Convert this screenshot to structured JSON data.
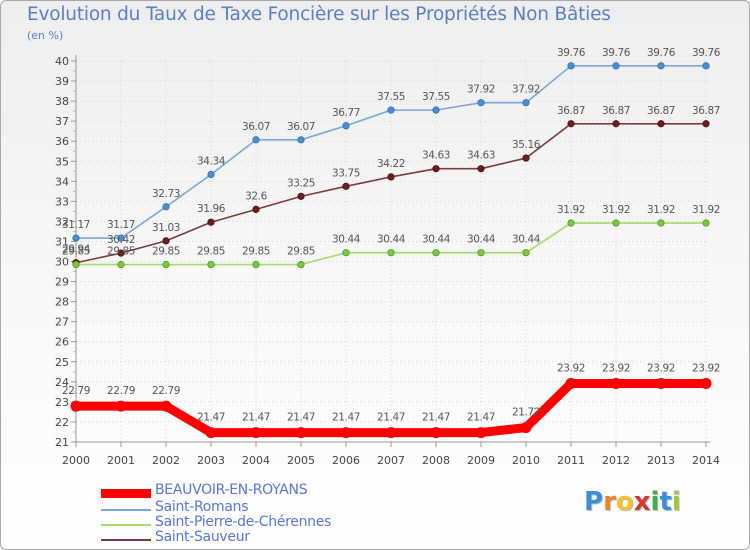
{
  "chart_data": {
    "type": "line",
    "title": "Evolution du Taux de Taxe Foncière sur les Propriétés Non Bâties",
    "ylabel": "(en %)",
    "xlabel": "",
    "x": [
      "2000",
      "2001",
      "2002",
      "2003",
      "2004",
      "2005",
      "2006",
      "2007",
      "2008",
      "2009",
      "2010",
      "2011",
      "2012",
      "2013",
      "2014"
    ],
    "ylim": [
      21,
      40
    ],
    "yticks": [
      21,
      22,
      23,
      24,
      25,
      26,
      27,
      28,
      29,
      30,
      31,
      32,
      33,
      34,
      35,
      36,
      37,
      38,
      39,
      40
    ],
    "grid": true,
    "legend_position": "bottom-left",
    "series": [
      {
        "name": "BEAUVOIR-EN-ROYANS",
        "color": "#ff0000",
        "values": [
          22.79,
          22.79,
          22.79,
          21.47,
          21.47,
          21.47,
          21.47,
          21.47,
          21.47,
          21.47,
          21.72,
          23.92,
          23.92,
          23.92,
          23.92
        ],
        "labels": [
          "22.79",
          "22.79",
          "22.79",
          "21.47",
          "21.47",
          "21.47",
          "21.47",
          "21.47",
          "21.47",
          "21.47",
          "21.72",
          "23.92",
          "23.92",
          "23.92",
          "23.92"
        ]
      },
      {
        "name": "Saint-Romans",
        "color": "#7aa6d6",
        "values": [
          31.17,
          31.17,
          32.73,
          34.34,
          36.07,
          36.07,
          36.77,
          37.55,
          37.55,
          37.92,
          37.92,
          39.76,
          39.76,
          39.76,
          39.76
        ],
        "labels": [
          "31.17",
          "31.17",
          "32.73",
          "34.34",
          "36.07",
          "36.07",
          "36.77",
          "37.55",
          "37.55",
          "37.92",
          "37.92",
          "39.76",
          "39.76",
          "39.76",
          "39.76"
        ]
      },
      {
        "name": "Saint-Pierre-de-Chérennes",
        "color": "#a6da6a",
        "values": [
          29.85,
          29.85,
          29.85,
          29.85,
          29.85,
          29.85,
          30.44,
          30.44,
          30.44,
          30.44,
          30.44,
          31.92,
          31.92,
          31.92,
          31.92
        ],
        "labels": [
          "29.85",
          "29.85",
          "29.85",
          "29.85",
          "29.85",
          "29.85",
          "30.44",
          "30.44",
          "30.44",
          "30.44",
          "30.44",
          "31.92",
          "31.92",
          "31.92",
          "31.92"
        ]
      },
      {
        "name": "Saint-Sauveur",
        "color": "#7a3b3b",
        "values": [
          29.94,
          30.42,
          31.03,
          31.96,
          32.6,
          33.25,
          33.75,
          34.22,
          34.63,
          34.63,
          35.16,
          36.87,
          36.87,
          36.87,
          36.87
        ],
        "labels": [
          "29.94",
          "30.42",
          "31.03",
          "31.96",
          "32.6",
          "33.25",
          "33.75",
          "34.22",
          "34.63",
          "34.63",
          "35.16",
          "36.87",
          "36.87",
          "36.87",
          "36.87"
        ]
      }
    ]
  },
  "logo": {
    "letters": [
      "P",
      "r",
      "o",
      "x",
      "i",
      "t",
      "i"
    ],
    "colors": [
      "#3a8fd8",
      "#e8832a",
      "#f2c230",
      "#d23a2e",
      "#3fae49",
      "#3a8fd8",
      "#9bc83c"
    ]
  }
}
